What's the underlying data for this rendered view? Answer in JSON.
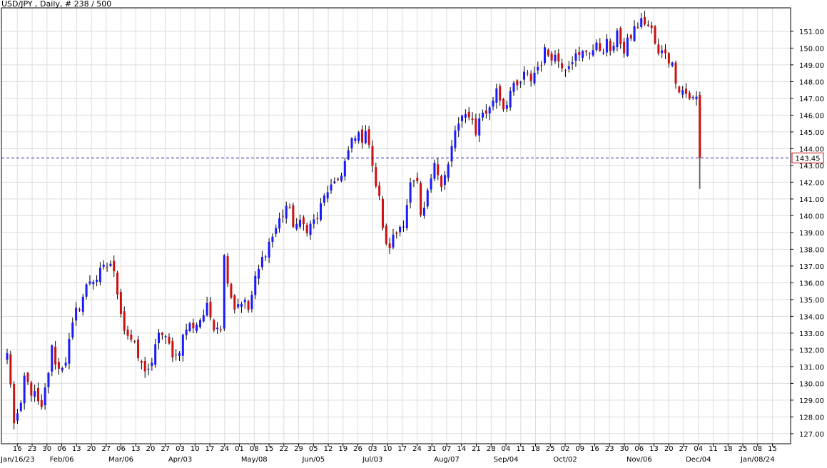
{
  "title": "USD/JPY , Daily, # 238 / 500",
  "chart_data": {
    "type": "candlestick",
    "symbol": "USD/JPY",
    "timeframe": "Daily",
    "grid": true,
    "colors": {
      "background": "#ffffff",
      "grid": "#dcdcdc",
      "up": "#1a1aff",
      "down": "#cc1111",
      "wick": "#000000",
      "price_line": "#1a1ab0",
      "current_price_label": "#cc1111"
    },
    "y_axis": {
      "min": 126.4,
      "max": 152.4,
      "tick_labels": [
        "127.00",
        "128.00",
        "129.00",
        "130.00",
        "131.00",
        "132.00",
        "133.00",
        "134.00",
        "135.00",
        "136.00",
        "137.00",
        "138.00",
        "139.00",
        "140.00",
        "141.00",
        "142.00",
        "143.00",
        "144.00",
        "145.00",
        "146.00",
        "147.00",
        "148.00",
        "149.00",
        "150.00",
        "151.00"
      ]
    },
    "current_price": 143.45,
    "current_price_label": "143.45",
    "x_axis": {
      "day_labels": [
        "16",
        "23",
        "30",
        "06",
        "13",
        "20",
        "27",
        "06",
        "13",
        "20",
        "27",
        "03",
        "10",
        "17",
        "24",
        "01",
        "08",
        "15",
        "22",
        "29",
        "05",
        "12",
        "19",
        "26",
        "03",
        "10",
        "17",
        "24",
        "31",
        "07",
        "14",
        "21",
        "28",
        "04",
        "11",
        "18",
        "25",
        "02",
        "09",
        "16",
        "23",
        "30",
        "06",
        "13",
        "20",
        "27",
        "04",
        "11",
        "18",
        "25",
        "08",
        "15"
      ],
      "month_labels": [
        {
          "label": "Jan/16/23",
          "at": 0
        },
        {
          "label": "Feb/06",
          "at": 3
        },
        {
          "label": "Mar/06",
          "at": 7
        },
        {
          "label": "Apr/03",
          "at": 11
        },
        {
          "label": "May/08",
          "at": 16
        },
        {
          "label": "Jun/05",
          "at": 20
        },
        {
          "label": "Jul/03",
          "at": 24
        },
        {
          "label": "Aug/07",
          "at": 29
        },
        {
          "label": "Sep/04",
          "at": 33
        },
        {
          "label": "Oct/02",
          "at": 37
        },
        {
          "label": "Nov/06",
          "at": 42
        },
        {
          "label": "Dec/04",
          "at": 46
        },
        {
          "label": "Jan/08/24",
          "at": 50
        }
      ]
    },
    "anchors": [
      [
        0,
        131.8
      ],
      [
        2,
        127.8
      ],
      [
        4,
        128.4
      ],
      [
        5,
        130.3
      ],
      [
        8,
        129.2
      ],
      [
        10,
        128.3
      ],
      [
        13,
        132.0
      ],
      [
        15,
        130.8
      ],
      [
        17,
        131.5
      ],
      [
        20,
        134.2
      ],
      [
        24,
        136.2
      ],
      [
        26,
        136.3
      ],
      [
        30,
        137.2
      ],
      [
        32,
        135.6
      ],
      [
        34,
        133.3
      ],
      [
        36,
        132.6
      ],
      [
        39,
        131.0
      ],
      [
        42,
        130.9
      ],
      [
        44,
        133.2
      ],
      [
        46,
        132.5
      ],
      [
        49,
        131.6
      ],
      [
        52,
        133.3
      ],
      [
        55,
        133.6
      ],
      [
        58,
        134.4
      ],
      [
        60,
        133.6
      ],
      [
        62,
        133.5
      ],
      [
        63,
        137.5
      ],
      [
        65,
        135.3
      ],
      [
        66,
        134.6
      ],
      [
        68,
        135.0
      ],
      [
        70,
        134.4
      ],
      [
        72,
        136.1
      ],
      [
        75,
        138.0
      ],
      [
        77,
        138.8
      ],
      [
        79,
        139.7
      ],
      [
        81,
        140.6
      ],
      [
        83,
        139.6
      ],
      [
        85,
        139.4
      ],
      [
        88,
        139.4
      ],
      [
        90,
        139.9
      ],
      [
        93,
        141.6
      ],
      [
        95,
        141.6
      ],
      [
        98,
        143.2
      ],
      [
        100,
        144.3
      ],
      [
        102,
        144.8
      ],
      [
        105,
        144.6
      ],
      [
        107,
        141.8
      ],
      [
        108,
        140.9
      ],
      [
        110,
        138.0
      ],
      [
        112,
        138.6
      ],
      [
        115,
        139.8
      ],
      [
        117,
        141.8
      ],
      [
        119,
        141.8
      ],
      [
        120,
        139.6
      ],
      [
        122,
        141.2
      ],
      [
        124,
        143.6
      ],
      [
        126,
        141.7
      ],
      [
        128,
        142.9
      ],
      [
        130,
        145.1
      ],
      [
        132,
        145.6
      ],
      [
        134,
        146.2
      ],
      [
        136,
        145.1
      ],
      [
        138,
        146.2
      ],
      [
        140,
        146.3
      ],
      [
        142,
        147.7
      ],
      [
        144,
        146.5
      ],
      [
        146,
        147.4
      ],
      [
        148,
        147.6
      ],
      [
        150,
        148.3
      ],
      [
        152,
        148.2
      ],
      [
        154,
        148.9
      ],
      [
        156,
        149.7
      ],
      [
        158,
        149.7
      ],
      [
        160,
        149.3
      ],
      [
        162,
        149.0
      ],
      [
        164,
        149.5
      ],
      [
        166,
        149.4
      ],
      [
        168,
        149.9
      ],
      [
        170,
        149.9
      ],
      [
        172,
        150.0
      ],
      [
        174,
        150.2
      ],
      [
        176,
        149.7
      ],
      [
        177,
        151.3
      ],
      [
        179,
        149.6
      ],
      [
        181,
        150.8
      ],
      [
        183,
        151.4
      ],
      [
        185,
        151.6
      ],
      [
        187,
        151.0
      ],
      [
        189,
        149.5
      ],
      [
        191,
        149.9
      ],
      [
        193,
        148.9
      ],
      [
        195,
        147.7
      ],
      [
        197,
        147.3
      ],
      [
        199,
        146.9
      ],
      [
        200,
        147.1
      ],
      [
        201,
        143.45
      ]
    ]
  }
}
